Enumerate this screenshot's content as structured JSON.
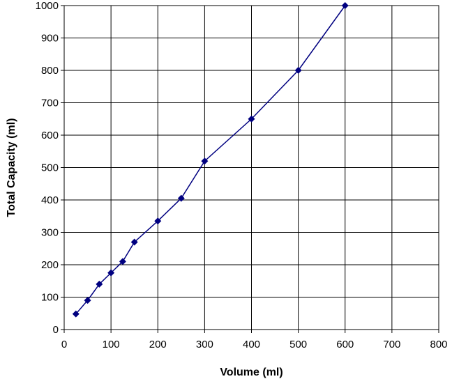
{
  "chart_data": {
    "type": "line",
    "title": "",
    "xlabel": "Volume (ml)",
    "ylabel": "Total Capacity (ml)",
    "xlim": [
      0,
      800
    ],
    "ylim": [
      0,
      1000
    ],
    "x_ticks": [
      0,
      100,
      200,
      300,
      400,
      500,
      600,
      700,
      800
    ],
    "y_ticks": [
      0,
      100,
      200,
      300,
      400,
      500,
      600,
      700,
      800,
      900,
      1000
    ],
    "grid": true,
    "legend": "none",
    "marker": "diamond",
    "series": [
      {
        "color": "#000080",
        "points": [
          {
            "x": 25,
            "y": 48
          },
          {
            "x": 50,
            "y": 90
          },
          {
            "x": 75,
            "y": 140
          },
          {
            "x": 100,
            "y": 175
          },
          {
            "x": 125,
            "y": 210
          },
          {
            "x": 150,
            "y": 270
          },
          {
            "x": 200,
            "y": 335
          },
          {
            "x": 250,
            "y": 405
          },
          {
            "x": 300,
            "y": 520
          },
          {
            "x": 400,
            "y": 650
          },
          {
            "x": 500,
            "y": 800
          },
          {
            "x": 600,
            "y": 1000
          }
        ]
      }
    ]
  }
}
